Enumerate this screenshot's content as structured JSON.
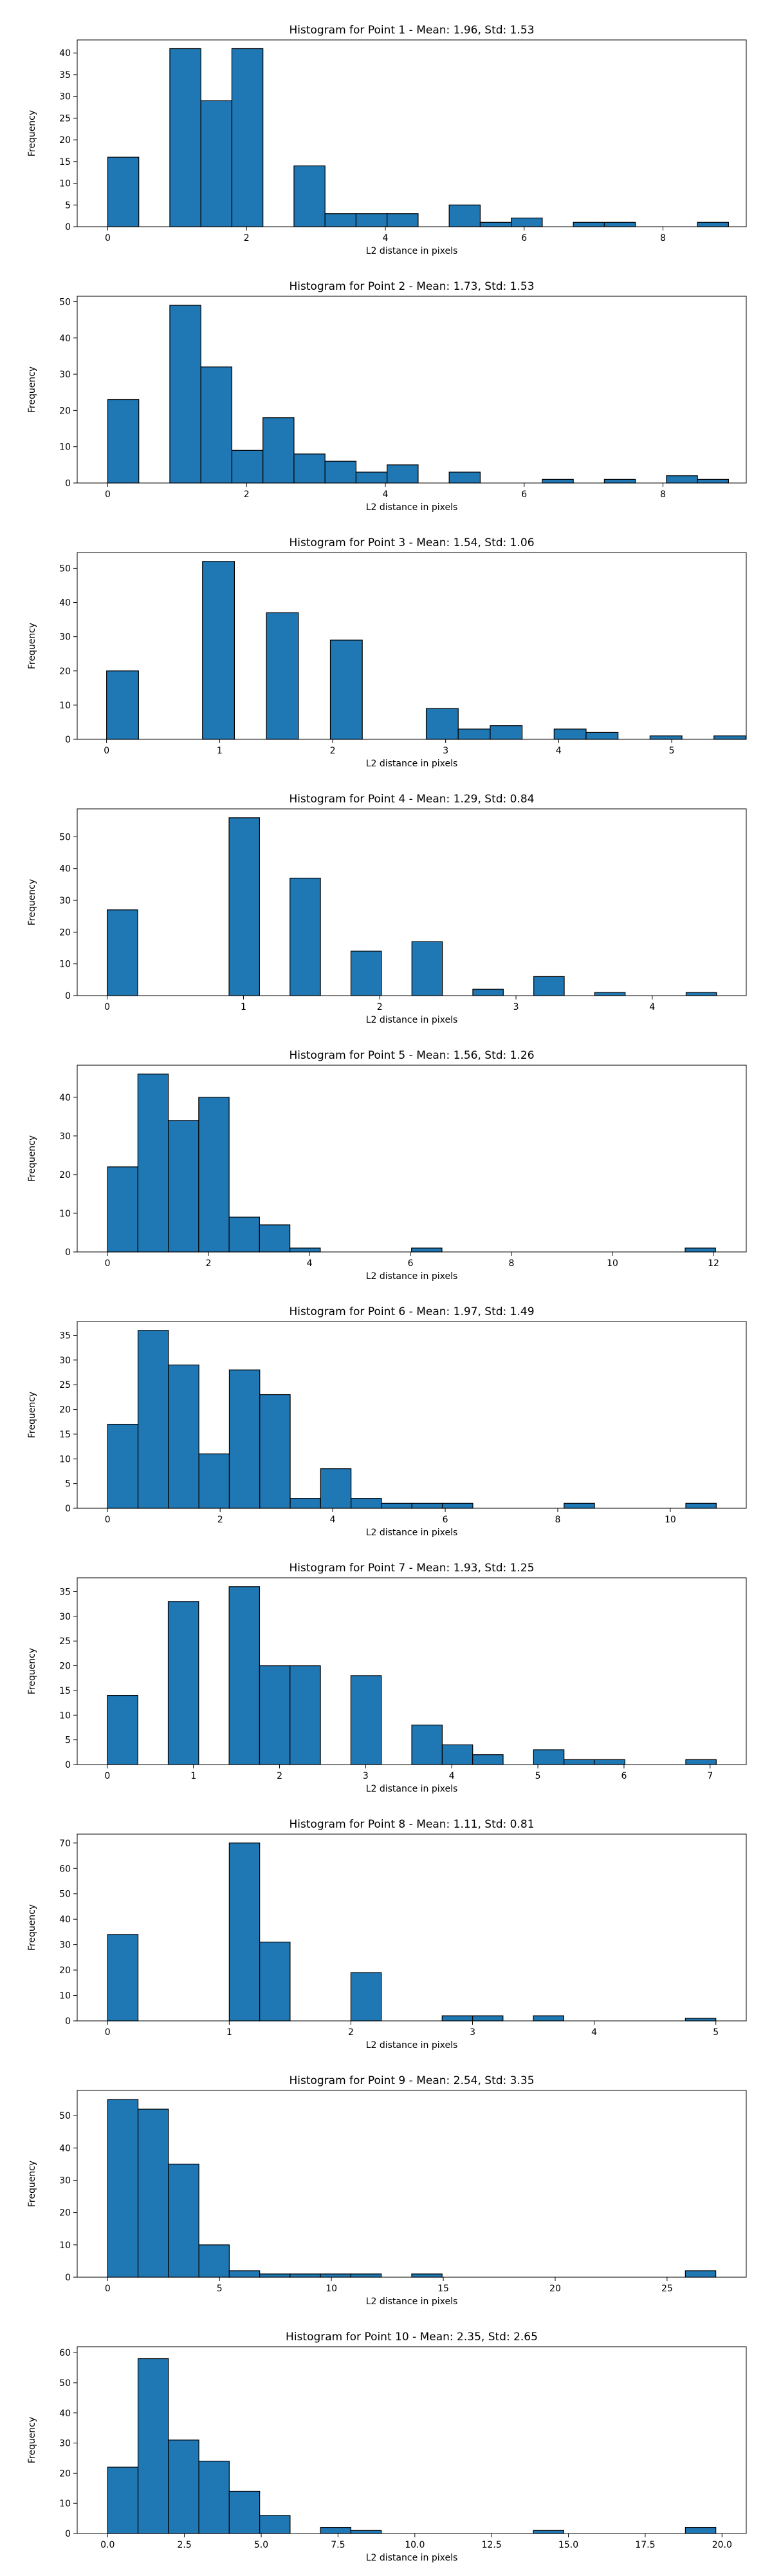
{
  "chart_data": [
    {
      "type": "histogram",
      "title": "Histogram for Point 1 - Mean: 1.96, Std: 1.53",
      "xlabel": "L2 distance in pixels",
      "ylabel": "Frequency",
      "xlim": [
        -0.44,
        9.2
      ],
      "ylim": [
        0,
        43
      ],
      "xticks": [
        0,
        2,
        4,
        6,
        8
      ],
      "xtick_labels": [
        "0",
        "2",
        "4",
        "6",
        "8"
      ],
      "yticks": [
        0,
        5,
        10,
        15,
        20,
        25,
        30,
        35,
        40
      ],
      "ytick_labels": [
        "0",
        "5",
        "10",
        "15",
        "20",
        "25",
        "30",
        "35",
        "40"
      ],
      "bin_edges": [
        0.0,
        0.4472,
        0.8944,
        1.3416,
        1.7888,
        2.2361,
        2.6833,
        3.1305,
        3.5777,
        4.0249,
        4.4721,
        4.9193,
        5.3666,
        5.8138,
        6.261,
        6.7082,
        7.1554,
        7.6026,
        8.0498,
        8.4971,
        8.9443
      ],
      "values": [
        16,
        0,
        41,
        29,
        41,
        0,
        14,
        3,
        3,
        3,
        0,
        5,
        1,
        2,
        0,
        1,
        1,
        0,
        0,
        1
      ],
      "bar_color": "#1f77b4",
      "edge_color": "#000000"
    },
    {
      "type": "histogram",
      "title": "Histogram for Point 2 - Mean: 1.73, Std: 1.53",
      "xlabel": "L2 distance in pixels",
      "ylabel": "Frequency",
      "xlim": [
        -0.44,
        9.2
      ],
      "ylim": [
        0,
        51.5
      ],
      "xticks": [
        0,
        2,
        4,
        6,
        8
      ],
      "xtick_labels": [
        "0",
        "2",
        "4",
        "6",
        "8"
      ],
      "yticks": [
        0,
        10,
        20,
        30,
        40,
        50
      ],
      "ytick_labels": [
        "0",
        "10",
        "20",
        "30",
        "40",
        "50"
      ],
      "bin_edges": [
        0.0,
        0.4472,
        0.8944,
        1.3416,
        1.7888,
        2.2361,
        2.6833,
        3.1305,
        3.5777,
        4.0249,
        4.4721,
        4.9193,
        5.3666,
        5.8138,
        6.261,
        6.7082,
        7.1554,
        7.6026,
        8.0498,
        8.4971,
        8.9443
      ],
      "values": [
        23,
        0,
        49,
        32,
        9,
        18,
        8,
        6,
        3,
        5,
        0,
        3,
        0,
        0,
        1,
        0,
        1,
        0,
        2,
        1
      ],
      "bar_color": "#1f77b4",
      "edge_color": "#000000"
    },
    {
      "type": "histogram",
      "title": "Histogram for Point 3 - Mean: 1.54, Std: 1.06",
      "xlabel": "L2 distance in pixels",
      "ylabel": "Frequency",
      "xlim": [
        -0.26,
        5.66
      ],
      "ylim": [
        0,
        54.6
      ],
      "xticks": [
        0,
        1,
        2,
        3,
        4,
        5
      ],
      "xtick_labels": [
        "0",
        "1",
        "2",
        "3",
        "4",
        "5"
      ],
      "yticks": [
        0,
        10,
        20,
        30,
        40,
        50
      ],
      "ytick_labels": [
        "0",
        "10",
        "20",
        "30",
        "40",
        "50"
      ],
      "bin_edges": [
        0.0,
        0.2828,
        0.5657,
        0.8485,
        1.1314,
        1.4142,
        1.6971,
        1.9799,
        2.2627,
        2.5456,
        2.8284,
        3.1113,
        3.3941,
        3.677,
        3.9598,
        4.2426,
        4.5255,
        4.8083,
        5.0912,
        5.374,
        5.6569
      ],
      "values": [
        20,
        0,
        0,
        52,
        0,
        37,
        0,
        29,
        0,
        0,
        9,
        3,
        4,
        0,
        3,
        2,
        0,
        1,
        0,
        1
      ],
      "bar_color": "#1f77b4",
      "edge_color": "#000000"
    },
    {
      "type": "histogram",
      "title": "Histogram for Point 4 - Mean: 1.29, Std: 0.84",
      "xlabel": "L2 distance in pixels",
      "ylabel": "Frequency",
      "xlim": [
        -0.22,
        4.69
      ],
      "ylim": [
        0,
        58.8
      ],
      "xticks": [
        0,
        1,
        2,
        3,
        4
      ],
      "xtick_labels": [
        "0",
        "1",
        "2",
        "3",
        "4"
      ],
      "yticks": [
        0,
        10,
        20,
        30,
        40,
        50
      ],
      "ytick_labels": [
        "0",
        "10",
        "20",
        "30",
        "40",
        "50"
      ],
      "bin_edges": [
        0.0,
        0.2236,
        0.4472,
        0.6708,
        0.8944,
        1.118,
        1.3416,
        1.5652,
        1.7889,
        2.0125,
        2.2361,
        2.4597,
        2.6833,
        2.9069,
        3.1305,
        3.3541,
        3.5777,
        3.8013,
        4.0249,
        4.2485,
        4.4721
      ],
      "values": [
        27,
        0,
        0,
        0,
        56,
        0,
        37,
        0,
        14,
        0,
        17,
        0,
        2,
        0,
        6,
        0,
        1,
        0,
        0,
        1
      ],
      "bar_color": "#1f77b4",
      "edge_color": "#000000"
    },
    {
      "type": "histogram",
      "title": "Histogram for Point 5 - Mean: 1.56, Std: 1.26",
      "xlabel": "L2 distance in pixels",
      "ylabel": "Frequency",
      "xlim": [
        -0.6,
        12.65
      ],
      "ylim": [
        0,
        48.3
      ],
      "xticks": [
        0,
        2,
        4,
        6,
        8,
        10,
        12
      ],
      "xtick_labels": [
        "0",
        "2",
        "4",
        "6",
        "8",
        "10",
        "12"
      ],
      "yticks": [
        0,
        10,
        20,
        30,
        40
      ],
      "ytick_labels": [
        "0",
        "10",
        "20",
        "30",
        "40"
      ],
      "bin_edges": [
        0.0,
        0.6021,
        1.2042,
        1.8063,
        2.4083,
        3.0104,
        3.6125,
        4.2146,
        4.8167,
        5.4188,
        6.0208,
        6.6229,
        7.225,
        7.8271,
        8.4292,
        9.0313,
        9.6333,
        10.2354,
        10.8375,
        11.4396,
        12.0417
      ],
      "values": [
        22,
        46,
        34,
        40,
        9,
        7,
        1,
        0,
        0,
        0,
        1,
        0,
        0,
        0,
        0,
        0,
        0,
        0,
        0,
        1
      ],
      "bar_color": "#1f77b4",
      "edge_color": "#000000"
    },
    {
      "type": "histogram",
      "title": "Histogram for Point 6 - Mean: 1.97, Std: 1.49",
      "xlabel": "L2 distance in pixels",
      "ylabel": "Frequency",
      "xlim": [
        -0.54,
        11.35
      ],
      "ylim": [
        0,
        37.8
      ],
      "xticks": [
        0,
        2,
        4,
        6,
        8,
        10
      ],
      "xtick_labels": [
        "0",
        "2",
        "4",
        "6",
        "8",
        "10"
      ],
      "yticks": [
        0,
        5,
        10,
        15,
        20,
        25,
        30,
        35
      ],
      "ytick_labels": [
        "0",
        "5",
        "10",
        "15",
        "20",
        "25",
        "30",
        "35"
      ],
      "bin_edges": [
        0.0,
        0.5408,
        1.0817,
        1.6225,
        2.1633,
        2.7042,
        3.245,
        3.7858,
        4.3267,
        4.8675,
        5.4083,
        5.9492,
        6.49,
        7.0308,
        7.5717,
        8.1125,
        8.6533,
        9.1942,
        9.735,
        10.2758,
        10.8167
      ],
      "values": [
        17,
        36,
        29,
        11,
        28,
        23,
        2,
        8,
        2,
        1,
        1,
        1,
        0,
        0,
        0,
        1,
        0,
        0,
        0,
        1
      ],
      "bar_color": "#1f77b4",
      "edge_color": "#000000"
    },
    {
      "type": "histogram",
      "title": "Histogram for Point 7 - Mean: 1.93, Std: 1.25",
      "xlabel": "L2 distance in pixels",
      "ylabel": "Frequency",
      "xlim": [
        -0.35,
        7.42
      ],
      "ylim": [
        0,
        37.8
      ],
      "xticks": [
        0,
        1,
        2,
        3,
        4,
        5,
        6,
        7
      ],
      "xtick_labels": [
        "0",
        "1",
        "2",
        "3",
        "4",
        "5",
        "6",
        "7"
      ],
      "yticks": [
        0,
        5,
        10,
        15,
        20,
        25,
        30,
        35
      ],
      "ytick_labels": [
        "0",
        "5",
        "10",
        "15",
        "20",
        "25",
        "30",
        "35"
      ],
      "bin_edges": [
        0.0,
        0.3536,
        0.7071,
        1.0607,
        1.4142,
        1.7678,
        2.1213,
        2.4749,
        2.8284,
        3.182,
        3.5355,
        3.8891,
        4.2426,
        4.5962,
        4.9497,
        5.3033,
        5.6569,
        6.0104,
        6.364,
        6.7175,
        7.0711
      ],
      "values": [
        14,
        0,
        33,
        0,
        36,
        20,
        20,
        0,
        18,
        0,
        8,
        4,
        2,
        0,
        3,
        1,
        1,
        0,
        0,
        1
      ],
      "bar_color": "#1f77b4",
      "edge_color": "#000000"
    },
    {
      "type": "histogram",
      "title": "Histogram for Point 8 - Mean: 1.11, Std: 0.81",
      "xlabel": "L2 distance in pixels",
      "ylabel": "Frequency",
      "xlim": [
        -0.25,
        5.25
      ],
      "ylim": [
        0,
        73.5
      ],
      "xticks": [
        0,
        1,
        2,
        3,
        4,
        5
      ],
      "xtick_labels": [
        "0",
        "1",
        "2",
        "3",
        "4",
        "5"
      ],
      "yticks": [
        0,
        10,
        20,
        30,
        40,
        50,
        60,
        70
      ],
      "ytick_labels": [
        "0",
        "10",
        "20",
        "30",
        "40",
        "50",
        "60",
        "70"
      ],
      "bin_edges": [
        0.0,
        0.25,
        0.5,
        0.75,
        1.0,
        1.25,
        1.5,
        1.75,
        2.0,
        2.25,
        2.5,
        2.75,
        3.0,
        3.25,
        3.5,
        3.75,
        4.0,
        4.25,
        4.5,
        4.75,
        5.0
      ],
      "values": [
        34,
        0,
        0,
        0,
        70,
        31,
        0,
        0,
        19,
        0,
        0,
        2,
        2,
        0,
        2,
        0,
        0,
        0,
        0,
        1
      ],
      "bar_color": "#1f77b4",
      "edge_color": "#000000"
    },
    {
      "type": "histogram",
      "title": "Histogram for Point 9 - Mean: 2.54, Std: 3.35",
      "xlabel": "L2 distance in pixels",
      "ylabel": "Frequency",
      "xlim": [
        -1.36,
        28.54
      ],
      "ylim": [
        0,
        57.8
      ],
      "xticks": [
        0,
        5,
        10,
        15,
        20,
        25
      ],
      "xtick_labels": [
        "0",
        "5",
        "10",
        "15",
        "20",
        "25"
      ],
      "yticks": [
        0,
        10,
        20,
        30,
        40,
        50
      ],
      "ytick_labels": [
        "0",
        "10",
        "20",
        "30",
        "40",
        "50"
      ],
      "bin_edges": [
        0.0,
        1.3589,
        2.7178,
        4.0767,
        5.4356,
        6.7945,
        8.1534,
        9.5123,
        10.8712,
        12.2301,
        13.589,
        14.9479,
        16.3068,
        17.6657,
        19.0246,
        20.3835,
        21.7424,
        23.1013,
        24.4602,
        25.8191,
        27.178
      ],
      "values": [
        55,
        52,
        35,
        10,
        2,
        1,
        1,
        1,
        1,
        0,
        1,
        0,
        0,
        0,
        0,
        0,
        0,
        0,
        0,
        2
      ],
      "bar_color": "#1f77b4",
      "edge_color": "#000000"
    },
    {
      "type": "histogram",
      "title": "Histogram for Point 10 - Mean: 2.35, Std: 2.65",
      "xlabel": "L2 distance in pixels",
      "ylabel": "Frequency",
      "xlim": [
        -0.99,
        20.79
      ],
      "ylim": [
        0,
        61.95
      ],
      "xticks": [
        0.0,
        2.5,
        5.0,
        7.5,
        10.0,
        12.5,
        15.0,
        17.5,
        20.0
      ],
      "xtick_labels": [
        "0.0",
        "2.5",
        "5.0",
        "7.5",
        "10.0",
        "12.5",
        "15.0",
        "17.5",
        "20.0"
      ],
      "yticks": [
        0,
        10,
        20,
        30,
        40,
        50,
        60
      ],
      "ytick_labels": [
        "0",
        "10",
        "20",
        "30",
        "40",
        "50",
        "60"
      ],
      "bin_edges": [
        0.0,
        0.9899,
        1.9799,
        2.9698,
        3.9598,
        4.9497,
        5.9397,
        6.9296,
        7.9196,
        8.9095,
        9.8995,
        10.8894,
        11.8794,
        12.8693,
        13.8593,
        14.8492,
        15.8392,
        16.8291,
        17.8191,
        18.809,
        19.799
      ],
      "values": [
        22,
        58,
        31,
        24,
        14,
        6,
        0,
        2,
        1,
        0,
        0,
        0,
        0,
        0,
        1,
        0,
        0,
        0,
        0,
        2
      ],
      "bar_color": "#1f77b4",
      "edge_color": "#000000"
    }
  ]
}
